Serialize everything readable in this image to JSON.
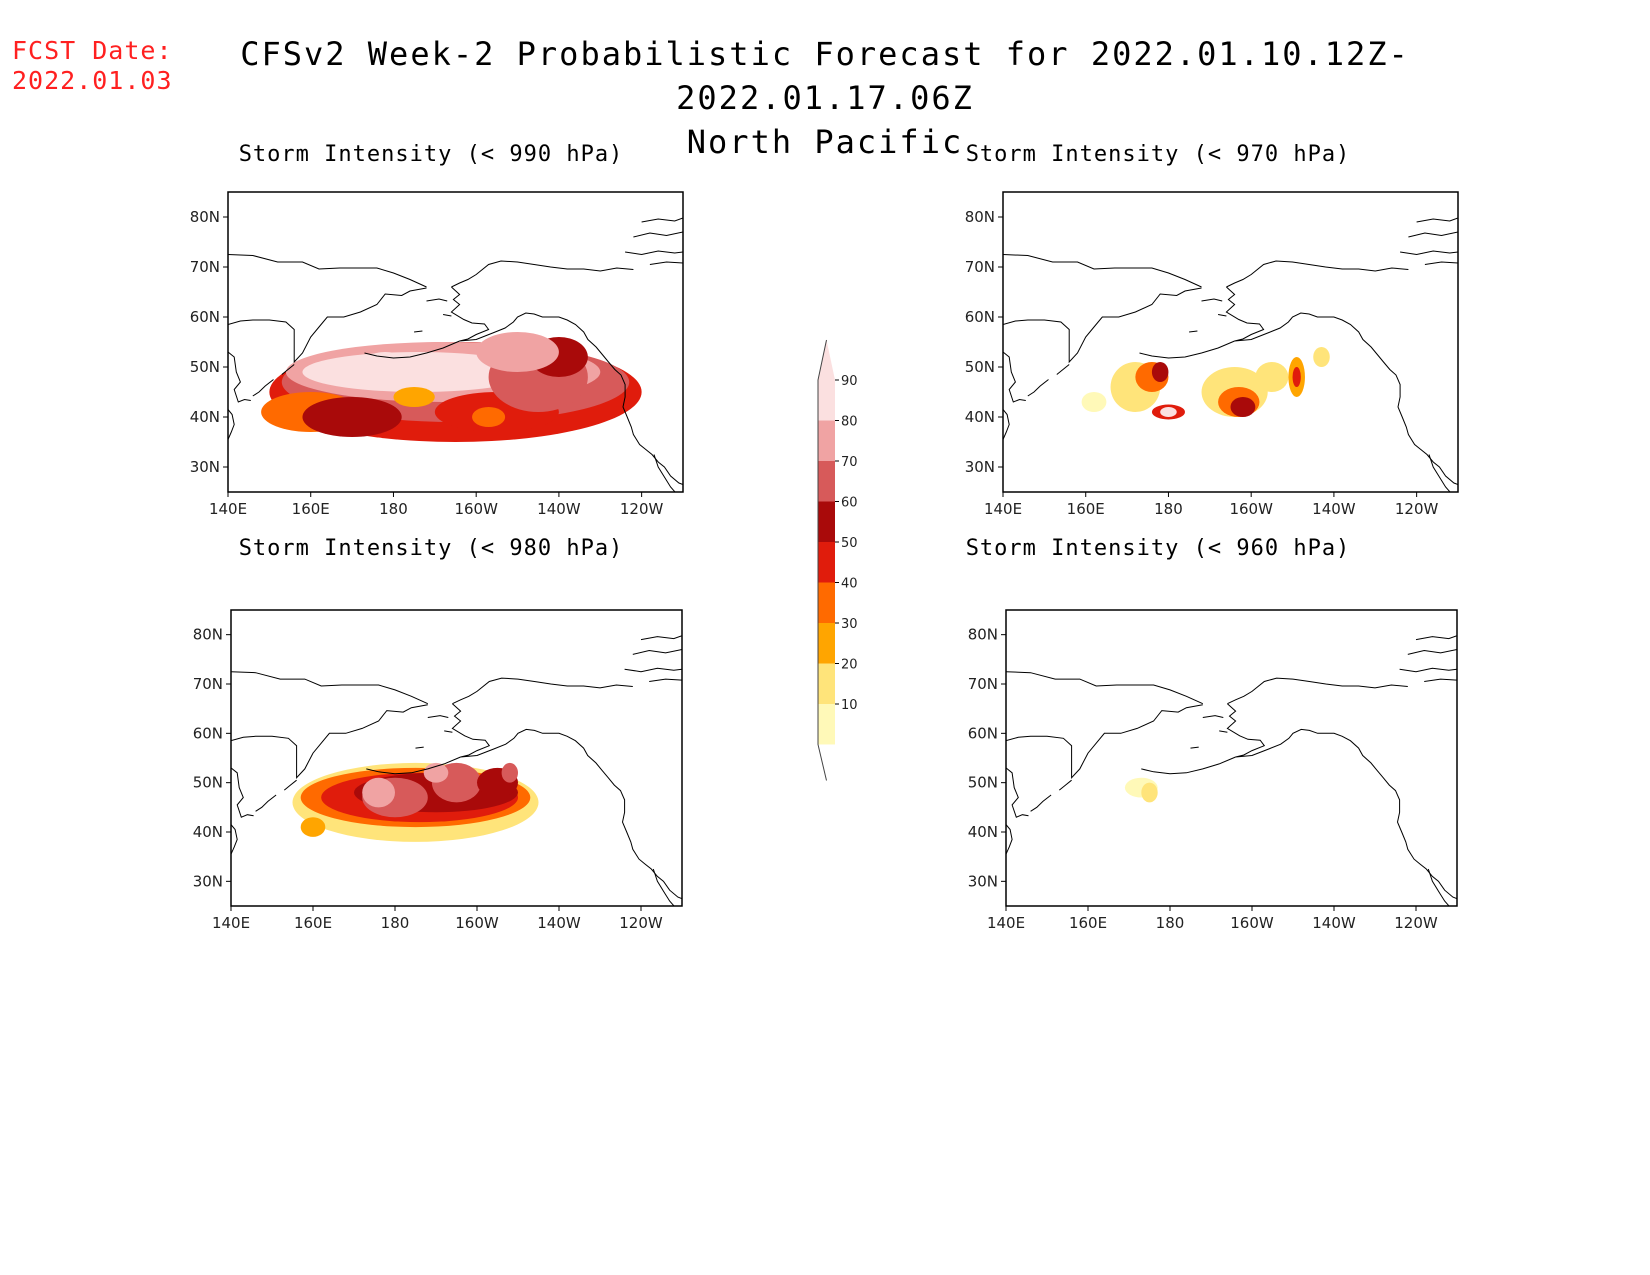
{
  "header": {
    "fcst_label": "FCST Date:",
    "fcst_date": "2022.01.03",
    "title": "CFSv2 Week-2 Probabilistic Forecast for 2022.01.10.12Z-2022.01.17.06Z",
    "subtitle": "North Pacific"
  },
  "panels": [
    {
      "id": "p990",
      "title": "Storm Intensity (< 990 hPa)"
    },
    {
      "id": "p970",
      "title": "Storm Intensity (< 970 hPa)"
    },
    {
      "id": "p980",
      "title": "Storm Intensity (< 980 hPa)"
    },
    {
      "id": "p960",
      "title": "Storm Intensity (< 960 hPa)"
    }
  ],
  "axes": {
    "lat_labels": [
      "80N",
      "70N",
      "60N",
      "50N",
      "40N",
      "30N"
    ],
    "lon_labels": [
      "140E",
      "160E",
      "180",
      "160W",
      "140W",
      "120W"
    ]
  },
  "colorbar": {
    "levels": [
      10,
      20,
      30,
      40,
      50,
      60,
      70,
      80,
      90
    ],
    "colors": [
      "#fff9b8",
      "#ffe47a",
      "#ffa500",
      "#ff6a00",
      "#e01c0c",
      "#a90a0a",
      "#d75a5a",
      "#f0a3a3",
      "#fbe0e0"
    ]
  },
  "colors": {
    "fcst_date": "#ff2020"
  }
}
